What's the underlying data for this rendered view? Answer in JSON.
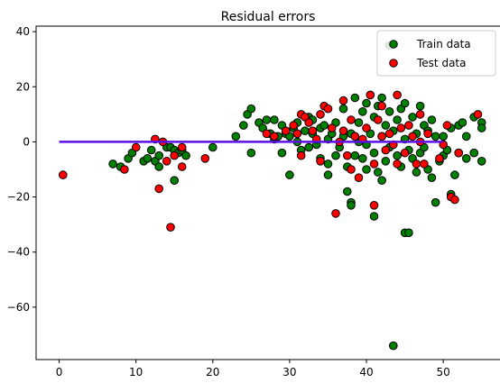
{
  "chart_data": {
    "type": "scatter",
    "title": "Residual errors",
    "xlabel": "",
    "ylabel": "",
    "xlim": [
      -3,
      57.5
    ],
    "ylim": [
      -79,
      42
    ],
    "xticks": [
      0,
      10,
      20,
      30,
      40,
      50
    ],
    "yticks": [
      40,
      20,
      0,
      -20,
      -40,
      -60
    ],
    "grid": false,
    "legend_position": "top-right",
    "zero_line": {
      "x": [
        0,
        50
      ],
      "y": [
        0,
        0
      ],
      "color": "#5b0ee6"
    },
    "series": [
      {
        "name": "Train data",
        "color": "#008000",
        "edge": "#000000",
        "points": [
          [
            7,
            -8
          ],
          [
            8,
            -9
          ],
          [
            9,
            -6
          ],
          [
            9.5,
            -4
          ],
          [
            11,
            -7
          ],
          [
            11.5,
            -6
          ],
          [
            12,
            -3
          ],
          [
            12.5,
            -7
          ],
          [
            13,
            -9
          ],
          [
            13,
            -5
          ],
          [
            14,
            -2
          ],
          [
            14.5,
            -2
          ],
          [
            15,
            -14
          ],
          [
            15,
            -3
          ],
          [
            15.5,
            -4
          ],
          [
            16,
            -3
          ],
          [
            16.5,
            -5
          ],
          [
            20,
            -2
          ],
          [
            23,
            2
          ],
          [
            24,
            6
          ],
          [
            24.5,
            10
          ],
          [
            25,
            12
          ],
          [
            25,
            -4
          ],
          [
            26,
            7
          ],
          [
            26.5,
            5
          ],
          [
            27,
            8
          ],
          [
            27.5,
            3
          ],
          [
            28,
            1
          ],
          [
            28,
            8
          ],
          [
            28.5,
            2
          ],
          [
            29,
            -4
          ],
          [
            29,
            6
          ],
          [
            29.5,
            3
          ],
          [
            30,
            -12
          ],
          [
            30,
            2
          ],
          [
            30.5,
            5
          ],
          [
            31,
            0
          ],
          [
            31,
            7
          ],
          [
            31.5,
            -3
          ],
          [
            32,
            4
          ],
          [
            32.5,
            9
          ],
          [
            32.5,
            -2
          ],
          [
            33,
            3
          ],
          [
            33,
            8
          ],
          [
            33.5,
            -1
          ],
          [
            34,
            5
          ],
          [
            34,
            -6
          ],
          [
            34.5,
            6
          ],
          [
            35,
            1
          ],
          [
            35,
            -8
          ],
          [
            35,
            -12
          ],
          [
            35.5,
            3
          ],
          [
            36,
            7
          ],
          [
            36,
            -5
          ],
          [
            36.5,
            -2
          ],
          [
            37,
            12
          ],
          [
            37,
            2
          ],
          [
            37.5,
            -9
          ],
          [
            37.5,
            -18
          ],
          [
            38,
            -22
          ],
          [
            38,
            -23
          ],
          [
            38,
            3
          ],
          [
            38.5,
            16
          ],
          [
            38.5,
            -5
          ],
          [
            39,
            7
          ],
          [
            39,
            0
          ],
          [
            39.5,
            11
          ],
          [
            39.5,
            -6
          ],
          [
            40,
            14
          ],
          [
            40,
            -1
          ],
          [
            40,
            -10
          ],
          [
            40.5,
            17
          ],
          [
            40.5,
            3
          ],
          [
            41,
            -4
          ],
          [
            41,
            -27
          ],
          [
            41,
            9
          ],
          [
            41.5,
            13
          ],
          [
            41.5,
            -11
          ],
          [
            42,
            16
          ],
          [
            42,
            2
          ],
          [
            42,
            -14
          ],
          [
            42.5,
            6
          ],
          [
            42.5,
            -7
          ],
          [
            43,
            -2
          ],
          [
            43,
            11
          ],
          [
            43,
            35
          ],
          [
            43.5,
            -74
          ],
          [
            43.5,
            4
          ],
          [
            44,
            -5
          ],
          [
            44,
            8
          ],
          [
            44.5,
            12
          ],
          [
            44.5,
            -9
          ],
          [
            45,
            -33
          ],
          [
            45,
            1
          ],
          [
            45,
            14
          ],
          [
            45.5,
            -3
          ],
          [
            45.5,
            -33
          ],
          [
            46,
            9
          ],
          [
            46,
            -6
          ],
          [
            46.5,
            3
          ],
          [
            46.5,
            -11
          ],
          [
            47,
            13
          ],
          [
            47,
            -4
          ],
          [
            47.5,
            6
          ],
          [
            47.5,
            -2
          ],
          [
            48,
            -10
          ],
          [
            48,
            4
          ],
          [
            48.5,
            -13
          ],
          [
            48.5,
            8
          ],
          [
            49,
            -22
          ],
          [
            49,
            2
          ],
          [
            49.5,
            -7
          ],
          [
            50,
            -5
          ],
          [
            50,
            2
          ],
          [
            50.5,
            -3
          ],
          [
            51,
            -19
          ],
          [
            51,
            5
          ],
          [
            51.5,
            -12
          ],
          [
            52,
            6
          ],
          [
            52,
            -4
          ],
          [
            52.5,
            7
          ],
          [
            53,
            -6
          ],
          [
            53,
            2
          ],
          [
            54,
            9
          ],
          [
            54,
            -4
          ],
          [
            55,
            -7
          ],
          [
            55,
            7
          ],
          [
            55,
            5
          ]
        ]
      },
      {
        "name": "Test data",
        "color": "#ff0000",
        "edge": "#000000",
        "points": [
          [
            0.5,
            -12
          ],
          [
            8.5,
            -10
          ],
          [
            10,
            -2
          ],
          [
            12.5,
            1
          ],
          [
            13,
            -17
          ],
          [
            13.5,
            0
          ],
          [
            14,
            -7
          ],
          [
            14.5,
            -31
          ],
          [
            15,
            -5
          ],
          [
            16,
            -9
          ],
          [
            16,
            -2
          ],
          [
            19,
            -6
          ],
          [
            27,
            3
          ],
          [
            28,
            2
          ],
          [
            29.5,
            4
          ],
          [
            30.5,
            6
          ],
          [
            31,
            3
          ],
          [
            31.5,
            -5
          ],
          [
            31.5,
            10
          ],
          [
            32,
            9
          ],
          [
            32.5,
            7
          ],
          [
            33,
            4
          ],
          [
            33.5,
            1
          ],
          [
            34,
            -7
          ],
          [
            34,
            10
          ],
          [
            34.5,
            13
          ],
          [
            35,
            12
          ],
          [
            35.5,
            5
          ],
          [
            36,
            -26
          ],
          [
            36.5,
            0
          ],
          [
            37,
            4
          ],
          [
            37,
            15
          ],
          [
            37.5,
            -5
          ],
          [
            38,
            8
          ],
          [
            38,
            -10
          ],
          [
            38.5,
            2
          ],
          [
            39,
            -13
          ],
          [
            39.5,
            1
          ],
          [
            40,
            5
          ],
          [
            40.5,
            17
          ],
          [
            41,
            -23
          ],
          [
            41,
            -8
          ],
          [
            41.5,
            8
          ],
          [
            42,
            2
          ],
          [
            42,
            13
          ],
          [
            42.5,
            -3
          ],
          [
            43,
            3
          ],
          [
            43.5,
            -1
          ],
          [
            44,
            17
          ],
          [
            44,
            -8
          ],
          [
            44.5,
            5
          ],
          [
            45,
            -4
          ],
          [
            45.5,
            6
          ],
          [
            46,
            2
          ],
          [
            46.5,
            -8
          ],
          [
            47,
            0
          ],
          [
            47,
            10
          ],
          [
            47.5,
            -8
          ],
          [
            48,
            3
          ],
          [
            49.5,
            -6
          ],
          [
            50,
            -1
          ],
          [
            50.5,
            6
          ],
          [
            51,
            -20
          ],
          [
            51.5,
            -21
          ],
          [
            52,
            -4
          ],
          [
            54.5,
            10
          ]
        ]
      }
    ]
  }
}
